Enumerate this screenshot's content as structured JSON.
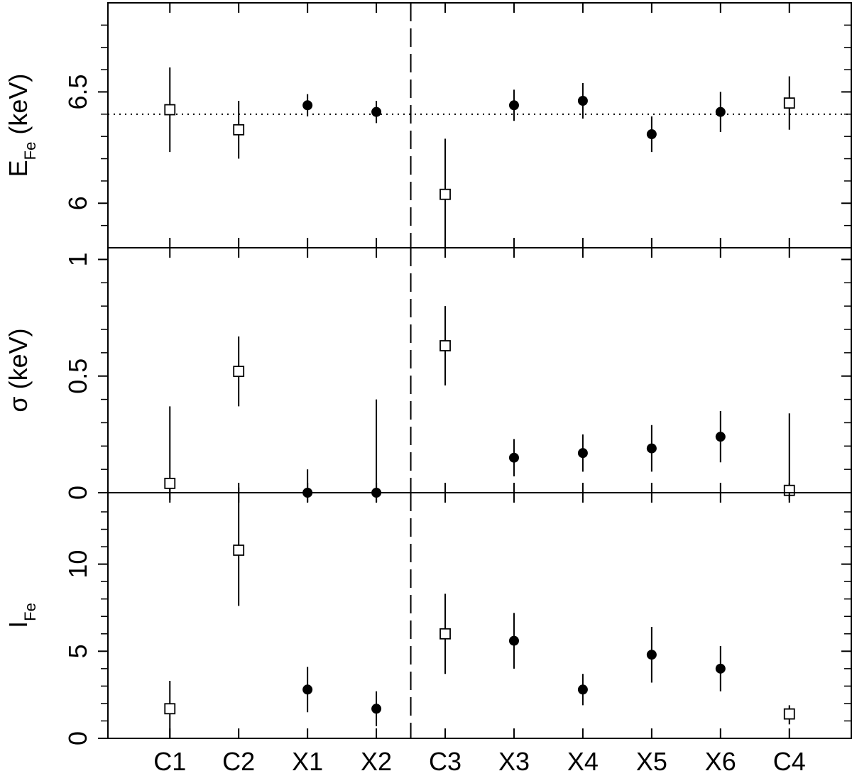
{
  "chart_data": [
    {
      "type": "errorbar",
      "ylabel": "E",
      "ylabel_sub": "Fe",
      "ylabel_suffix": " (keV)",
      "ylim": [
        5.8,
        6.9
      ],
      "yticks": [
        6,
        6.5
      ],
      "minor_yticks": [
        5.9,
        6.1,
        6.2,
        6.3,
        6.4,
        6.6,
        6.7,
        6.8
      ],
      "hline": {
        "value": 6.4,
        "style": "dotted"
      },
      "series": [
        {
          "marker": "open-square",
          "color": "#000000",
          "values": [
            6.42,
            6.33,
            null,
            null,
            6.04,
            null,
            null,
            null,
            null,
            6.45
          ],
          "err_plus": [
            0.19,
            0.13,
            null,
            null,
            0.25,
            null,
            null,
            null,
            null,
            0.12
          ],
          "err_minus": [
            0.19,
            0.13,
            null,
            null,
            0.25,
            null,
            null,
            null,
            null,
            0.12
          ]
        },
        {
          "marker": "filled-circle",
          "color": "#000000",
          "values": [
            null,
            null,
            6.44,
            6.41,
            null,
            6.44,
            6.46,
            6.31,
            6.41,
            null
          ],
          "err_plus": [
            null,
            null,
            0.05,
            0.05,
            null,
            0.07,
            0.08,
            0.08,
            0.09,
            null
          ],
          "err_minus": [
            null,
            null,
            0.05,
            0.05,
            null,
            0.07,
            0.08,
            0.08,
            0.09,
            null
          ]
        }
      ]
    },
    {
      "type": "errorbar",
      "ylabel": "σ (keV)",
      "ylim": [
        0,
        1.05
      ],
      "yticks": [
        0,
        0.5,
        1
      ],
      "minor_yticks": [
        0.1,
        0.2,
        0.3,
        0.4,
        0.6,
        0.7,
        0.8,
        0.9
      ],
      "hline": {
        "value": 0,
        "style": "solid"
      },
      "series": [
        {
          "marker": "open-square",
          "color": "#000000",
          "values": [
            0.04,
            0.52,
            null,
            null,
            0.63,
            null,
            null,
            null,
            null,
            0.01
          ],
          "err_plus": [
            0.33,
            0.15,
            null,
            null,
            0.17,
            null,
            null,
            null,
            null,
            0.33
          ],
          "err_minus": [
            0.07,
            0.15,
            null,
            null,
            0.17,
            null,
            null,
            null,
            null,
            0.04
          ]
        },
        {
          "marker": "filled-circle",
          "color": "#000000",
          "values": [
            null,
            null,
            0,
            0,
            null,
            0.15,
            0.17,
            0.19,
            0.24,
            null
          ],
          "err_plus": [
            null,
            null,
            0.1,
            0.4,
            null,
            0.08,
            0.08,
            0.1,
            0.11,
            null
          ],
          "err_minus": [
            null,
            null,
            0.04,
            0.04,
            null,
            0.08,
            0.08,
            0.1,
            0.11,
            null
          ]
        }
      ]
    },
    {
      "type": "errorbar",
      "ylabel": "I",
      "ylabel_sub": "Fe",
      "categories": [
        "C1",
        "C2",
        "X1",
        "X2",
        "C3",
        "X3",
        "X4",
        "X5",
        "X6",
        "C4"
      ],
      "ylim": [
        0,
        14.1
      ],
      "yticks": [
        0,
        5,
        10
      ],
      "minor_yticks": [
        1,
        2,
        3,
        4,
        6,
        7,
        8,
        9,
        11,
        12,
        13
      ],
      "series": [
        {
          "marker": "open-square",
          "color": "#000000",
          "values": [
            1.7,
            10.8,
            null,
            null,
            6.0,
            null,
            null,
            null,
            null,
            1.4
          ],
          "err_plus": [
            1.6,
            3.6,
            null,
            null,
            2.3,
            null,
            null,
            null,
            null,
            0.5
          ],
          "err_minus": [
            1.7,
            3.2,
            null,
            null,
            2.3,
            null,
            null,
            null,
            null,
            0.6
          ]
        },
        {
          "marker": "filled-circle",
          "color": "#000000",
          "values": [
            null,
            null,
            2.8,
            1.7,
            null,
            5.6,
            2.8,
            4.8,
            4.0,
            null
          ],
          "err_plus": [
            null,
            null,
            1.3,
            1.0,
            null,
            1.6,
            0.9,
            1.6,
            1.3,
            null
          ],
          "err_minus": [
            null,
            null,
            1.3,
            1.0,
            null,
            1.6,
            0.9,
            1.6,
            1.3,
            null
          ]
        }
      ]
    }
  ]
}
